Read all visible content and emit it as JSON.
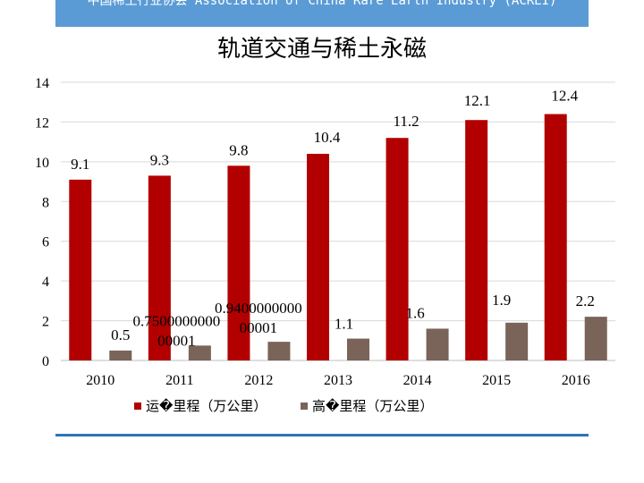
{
  "header": {
    "banner_text": "中国稀土行业协会 Association of China Rare Earth Industry (ACREI)"
  },
  "chart_data": {
    "type": "bar",
    "title": "轨道交通与稀土永磁",
    "categories": [
      "2010",
      "2011",
      "2012",
      "2013",
      "2014",
      "2015",
      "2016"
    ],
    "series": [
      {
        "name": "运�里程（万公里）",
        "color": "#b20000",
        "values": [
          9.1,
          9.3,
          9.8,
          10.4,
          11.2,
          12.1,
          12.4
        ],
        "labels": [
          "9.1",
          "9.3",
          "9.8",
          "10.4",
          "11.2",
          "12.1",
          "12.4"
        ]
      },
      {
        "name": "高�里程（万公里）",
        "color": "#7a6358",
        "values": [
          0.5,
          0.75,
          0.94,
          1.1,
          1.6,
          1.9,
          2.2
        ],
        "labels": [
          "0.5",
          "0.750000000000001",
          "0.940000000000001",
          "1.1",
          "1.6",
          "1.9",
          "2.2"
        ]
      }
    ],
    "ylim": [
      0,
      14
    ],
    "yticks": [
      "0",
      "2",
      "4",
      "6",
      "8",
      "10",
      "12",
      "14"
    ],
    "grid": true,
    "legend_position": "bottom"
  }
}
